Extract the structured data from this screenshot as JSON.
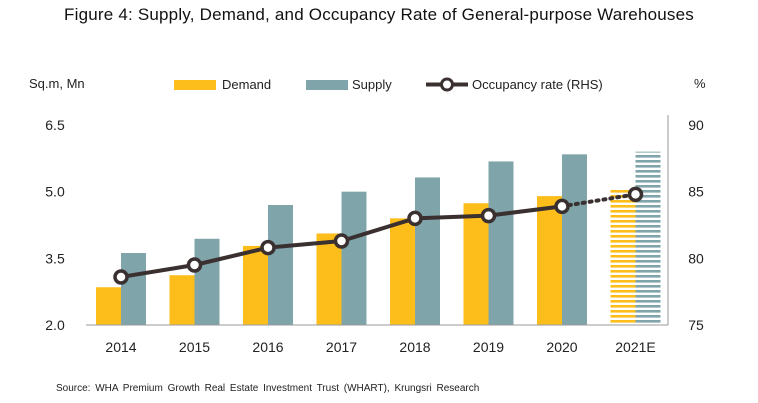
{
  "title": "Figure 4: Supply, Demand, and Occupancy Rate of General-purpose Warehouses",
  "source": "Source: WHA Premium Growth Real Estate Investment Trust (WHART), Krungsri Research",
  "colors": {
    "demand": "#FDBE1B",
    "supply": "#7FA4AA",
    "occupancy": "#3A3030"
  },
  "chart_data": {
    "type": "bar",
    "categories": [
      "2014",
      "2015",
      "2016",
      "2017",
      "2018",
      "2019",
      "2020",
      "2021E"
    ],
    "y_left_label": "Sq.m, Mn",
    "y_right_label": "%",
    "y_left_ticks": [
      "2.0",
      "3.5",
      "5.0",
      "6.5"
    ],
    "y_right_ticks": [
      "75",
      "80",
      "85",
      "90"
    ],
    "ylim_left": [
      2.0,
      6.5
    ],
    "ylim_right": [
      75,
      90
    ],
    "series": [
      {
        "name": "Demand",
        "kind": "bar",
        "axis": "left",
        "values": [
          2.85,
          3.12,
          3.78,
          4.06,
          4.4,
          4.74,
          4.9,
          5.08
        ]
      },
      {
        "name": "Supply",
        "kind": "bar",
        "axis": "left",
        "values": [
          3.62,
          3.94,
          4.7,
          5.0,
          5.32,
          5.68,
          5.84,
          5.9
        ]
      },
      {
        "name": "Occupancy rate (RHS)",
        "kind": "line",
        "axis": "right",
        "values": [
          78.6,
          79.5,
          80.8,
          81.3,
          83.0,
          83.2,
          83.9,
          84.8
        ]
      }
    ],
    "estimate_category": "2021E",
    "legend_position": "top",
    "grid": false
  }
}
